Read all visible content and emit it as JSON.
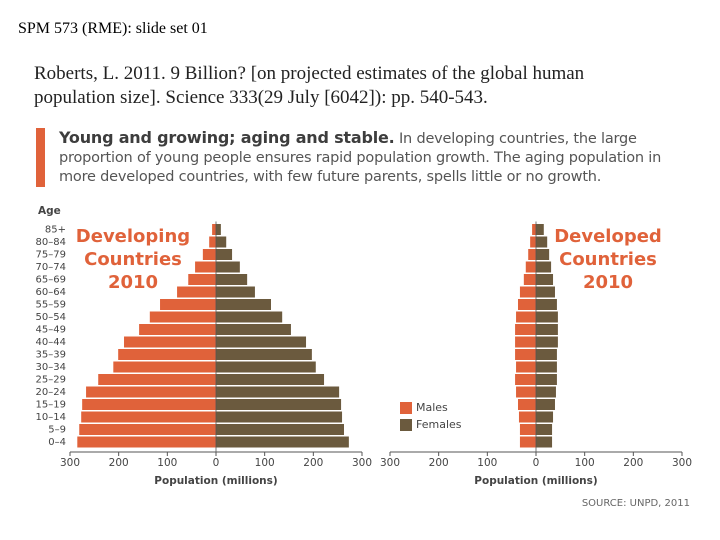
{
  "header": "SPM 573 (RME): slide set 01",
  "citation": "Roberts, L. 2011. 9 Billion? [on projected estimates of the global human population size]. Science 333(29 July [6042]): pp. 540-543.",
  "caption": {
    "lead": "Young and growing; aging and stable.",
    "text": "In developing countries, the large proportion of young people ensures rapid population growth. The aging population in more developed countries, with few future parents, spells little or no growth."
  },
  "source": "SOURCE: UNPD, 2011",
  "chart_data": [
    {
      "type": "pyramid",
      "title": "Developing Countries 2010",
      "ylabel": "Age",
      "xlabel": "Population (millions)",
      "categories": [
        "0–4",
        "5–9",
        "10–14",
        "15–19",
        "20–24",
        "25–29",
        "30–34",
        "35–39",
        "40–44",
        "45–49",
        "50–54",
        "55–59",
        "60–64",
        "65–69",
        "70–74",
        "75–79",
        "80–84",
        "85+"
      ],
      "xlim": [
        -300,
        300
      ],
      "xticks": [
        {
          "value": -300,
          "label": "300"
        },
        {
          "value": -200,
          "label": "200"
        },
        {
          "value": -100,
          "label": "100"
        },
        0,
        100,
        200,
        300
      ],
      "series": [
        {
          "color": "#e0623a",
          "side": "left",
          "values": [
            285,
            281,
            277,
            275,
            267,
            242,
            211,
            201,
            189,
            158,
            136,
            115,
            80,
            57,
            43,
            27,
            14,
            8
          ]
        },
        {
          "color": "#6b5a3e",
          "side": "right",
          "values": [
            273,
            263,
            259,
            257,
            253,
            222,
            205,
            197,
            185,
            154,
            136,
            113,
            80,
            64,
            49,
            33,
            21,
            10
          ]
        }
      ]
    },
    {
      "type": "pyramid",
      "title": "Developed Countries 2010",
      "xlabel": "Population (millions)",
      "xlim": [
        -300,
        300
      ],
      "xticks": [
        {
          "value": -300,
          "label": "300"
        },
        {
          "value": -200,
          "label": "200"
        },
        {
          "value": -100,
          "label": "100"
        },
        0,
        100,
        200,
        300
      ],
      "series": [
        {
          "name": "Males",
          "color": "#e0623a",
          "side": "left",
          "values": [
            33,
            33,
            35,
            37,
            41,
            43,
            41,
            43,
            43,
            43,
            41,
            37,
            33,
            25,
            21,
            16,
            12,
            8
          ]
        },
        {
          "name": "Females",
          "color": "#6b5a3e",
          "side": "right",
          "values": [
            33,
            33,
            35,
            39,
            41,
            43,
            43,
            43,
            45,
            45,
            45,
            43,
            39,
            35,
            31,
            27,
            23,
            16
          ]
        }
      ]
    }
  ]
}
